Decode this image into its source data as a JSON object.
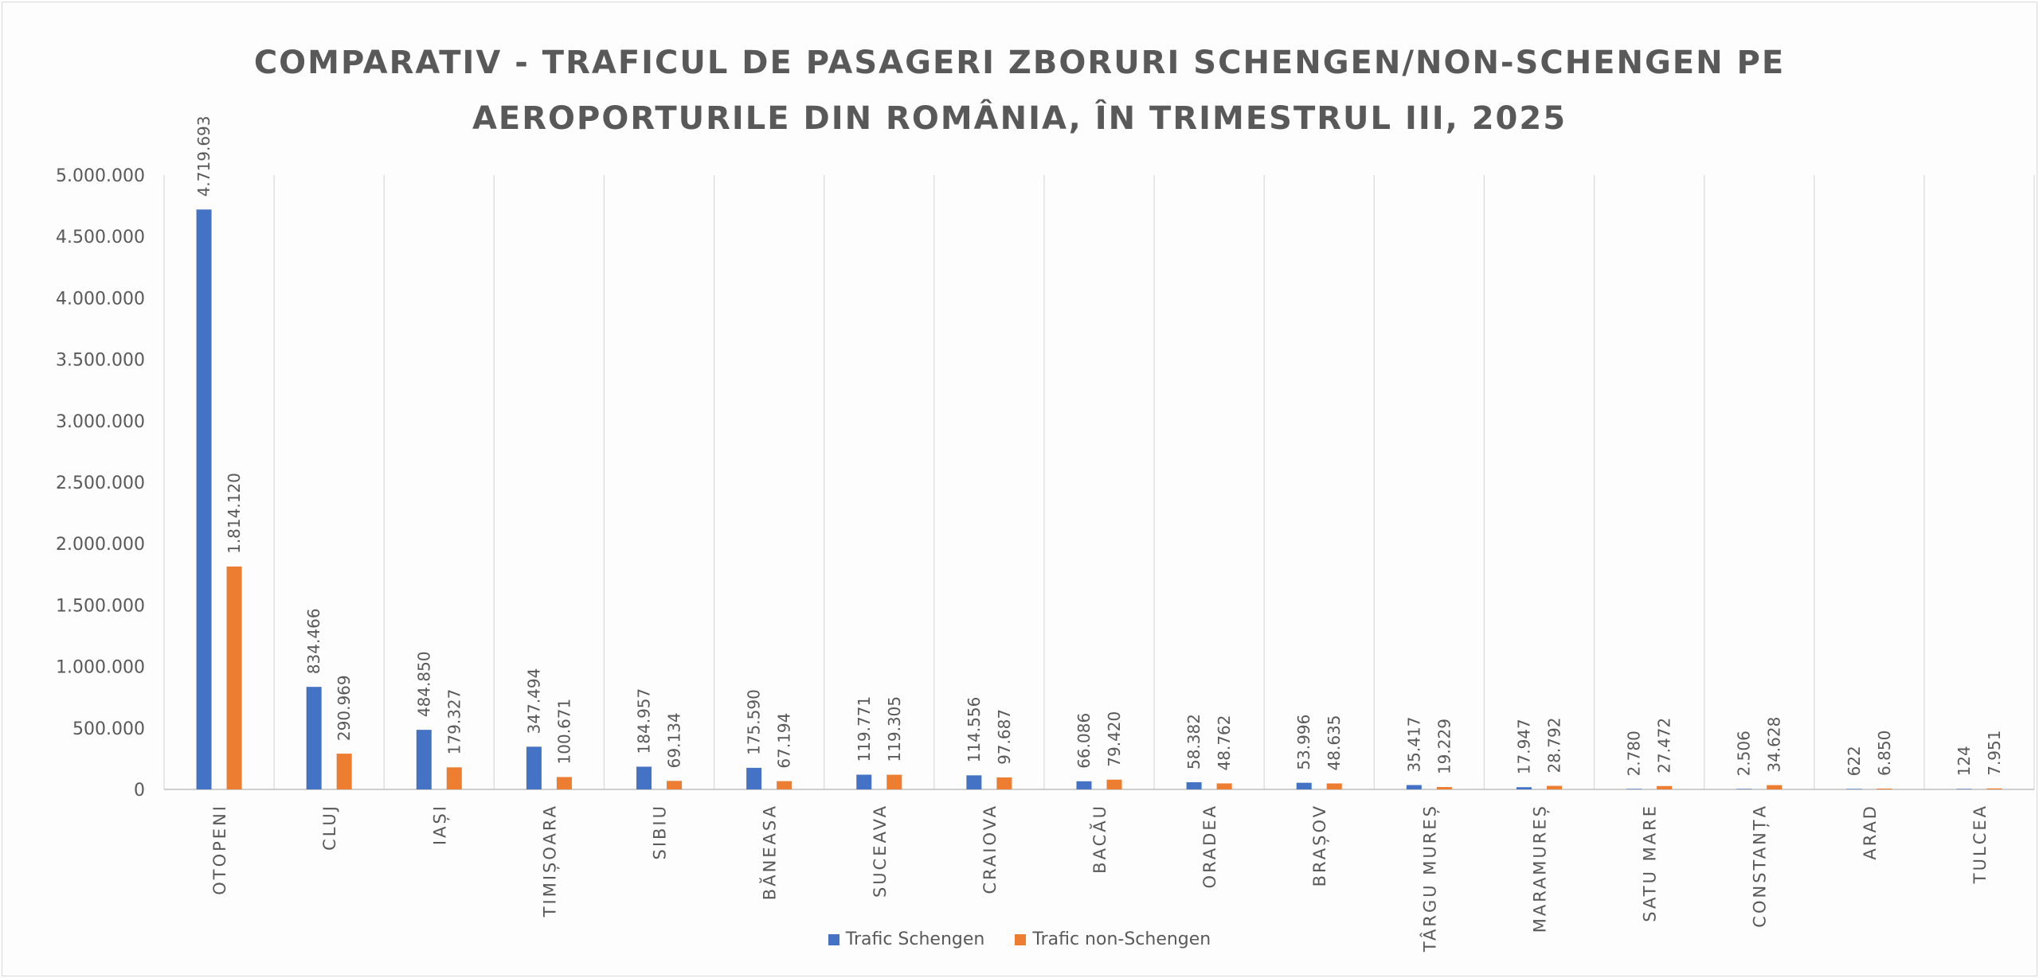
{
  "chart_data": {
    "type": "bar",
    "title_lines": [
      "COMPARATIV - TRAFICUL DE PASAGERI ZBORURI SCHENGEN/NON-SCHENGEN PE",
      "AEROPORTURILE DIN ROMÂNIA, ÎN TRIMESTRUL III, 2025"
    ],
    "categories": [
      "OTOPENI",
      "CLUJ",
      "IAȘI",
      "TIMIȘOARA",
      "SIBIU",
      "BĂNEASA",
      "SUCEAVA",
      "CRAIOVA",
      "BACĂU",
      "ORADEA",
      "BRAȘOV",
      "TÂRGU MUREȘ",
      "MARAMUREȘ",
      "SATU MARE",
      "CONSTANȚA",
      "ARAD",
      "TULCEA"
    ],
    "series": [
      {
        "name": "Trafic Schengen",
        "color": "#4472C4",
        "values": [
          4719693,
          834466,
          484850,
          347494,
          184957,
          175590,
          119771,
          114556,
          66086,
          58382,
          53996,
          35417,
          17947,
          2780,
          2506,
          622,
          124
        ],
        "labels": [
          "4.719.693",
          "834.466",
          "484.850",
          "347.494",
          "184.957",
          "175.590",
          "119.771",
          "114.556",
          "66.086",
          "58.382",
          "53.996",
          "35.417",
          "17.947",
          "2.780",
          "2.506",
          "622",
          "124"
        ]
      },
      {
        "name": "Trafic non-Schengen",
        "color": "#ED7D31",
        "values": [
          1814120,
          290969,
          179327,
          100671,
          69134,
          67194,
          119305,
          97687,
          79420,
          48762,
          48635,
          19229,
          28792,
          27472,
          34628,
          6850,
          7951
        ],
        "labels": [
          "1.814.120",
          "290.969",
          "179.327",
          "100.671",
          "69.134",
          "67.194",
          "119.305",
          "97.687",
          "79.420",
          "48.762",
          "48.635",
          "19.229",
          "28.792",
          "27.472",
          "34.628",
          "6.850",
          "7.951"
        ]
      }
    ],
    "ylim": [
      0,
      5000000
    ],
    "yticks": [
      0,
      500000,
      1000000,
      1500000,
      2000000,
      2500000,
      3000000,
      3500000,
      4000000,
      4500000,
      5000000
    ],
    "ytick_labels": [
      "0",
      "500.000",
      "1.000.000",
      "1.500.000",
      "2.000.000",
      "2.500.000",
      "3.000.000",
      "3.500.000",
      "4.000.000",
      "4.500.000",
      "5.000.000"
    ],
    "legend_position": "bottom",
    "grid": "vertical category separators"
  }
}
